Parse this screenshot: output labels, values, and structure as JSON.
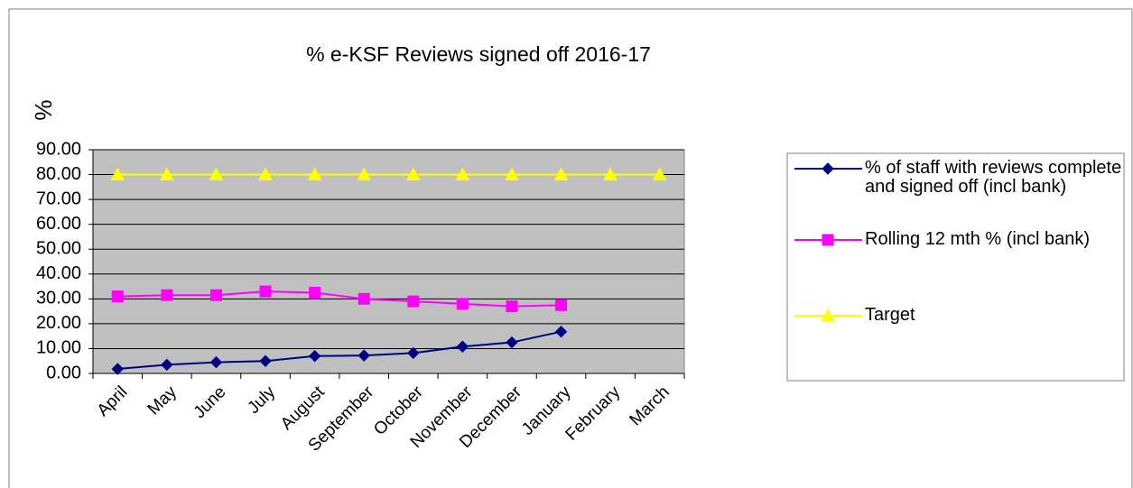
{
  "chart_data": {
    "type": "line",
    "title": "% e-KSF Reviews signed off 2016-17",
    "y_label": "%",
    "categories": [
      "April",
      "May",
      "June",
      "July",
      "August",
      "September",
      "October",
      "November",
      "December",
      "January",
      "February",
      "March"
    ],
    "series": [
      {
        "name": "% of staff with reviews complete and signed off (incl bank)",
        "color": "#000080",
        "marker": "diamond",
        "values": [
          1.8,
          3.5,
          4.5,
          5.0,
          7.0,
          7.2,
          8.2,
          10.8,
          12.5,
          16.8,
          null,
          null
        ]
      },
      {
        "name": "Rolling 12 mth % (incl bank)",
        "color": "#ff00ff",
        "marker": "square",
        "values": [
          31.0,
          31.5,
          31.5,
          33.0,
          32.5,
          30.0,
          29.0,
          28.0,
          27.0,
          27.5,
          null,
          null
        ]
      },
      {
        "name": "Target",
        "color": "#ffff00",
        "marker": "triangle",
        "values": [
          80,
          80,
          80,
          80,
          80,
          80,
          80,
          80,
          80,
          80,
          80,
          80
        ]
      }
    ],
    "ylim": [
      0,
      90
    ],
    "yticks": [
      {
        "value": 0,
        "label": "0.00"
      },
      {
        "value": 10,
        "label": "10.00"
      },
      {
        "value": 20,
        "label": "20.00"
      },
      {
        "value": 30,
        "label": "30.00"
      },
      {
        "value": 40,
        "label": "40.00"
      },
      {
        "value": 50,
        "label": "50.00"
      },
      {
        "value": 60,
        "label": "60.00"
      },
      {
        "value": 70,
        "label": "70.00"
      },
      {
        "value": 80,
        "label": "80.00"
      },
      {
        "value": 90,
        "label": "90.00"
      }
    ],
    "grid": true,
    "legend": "right"
  }
}
